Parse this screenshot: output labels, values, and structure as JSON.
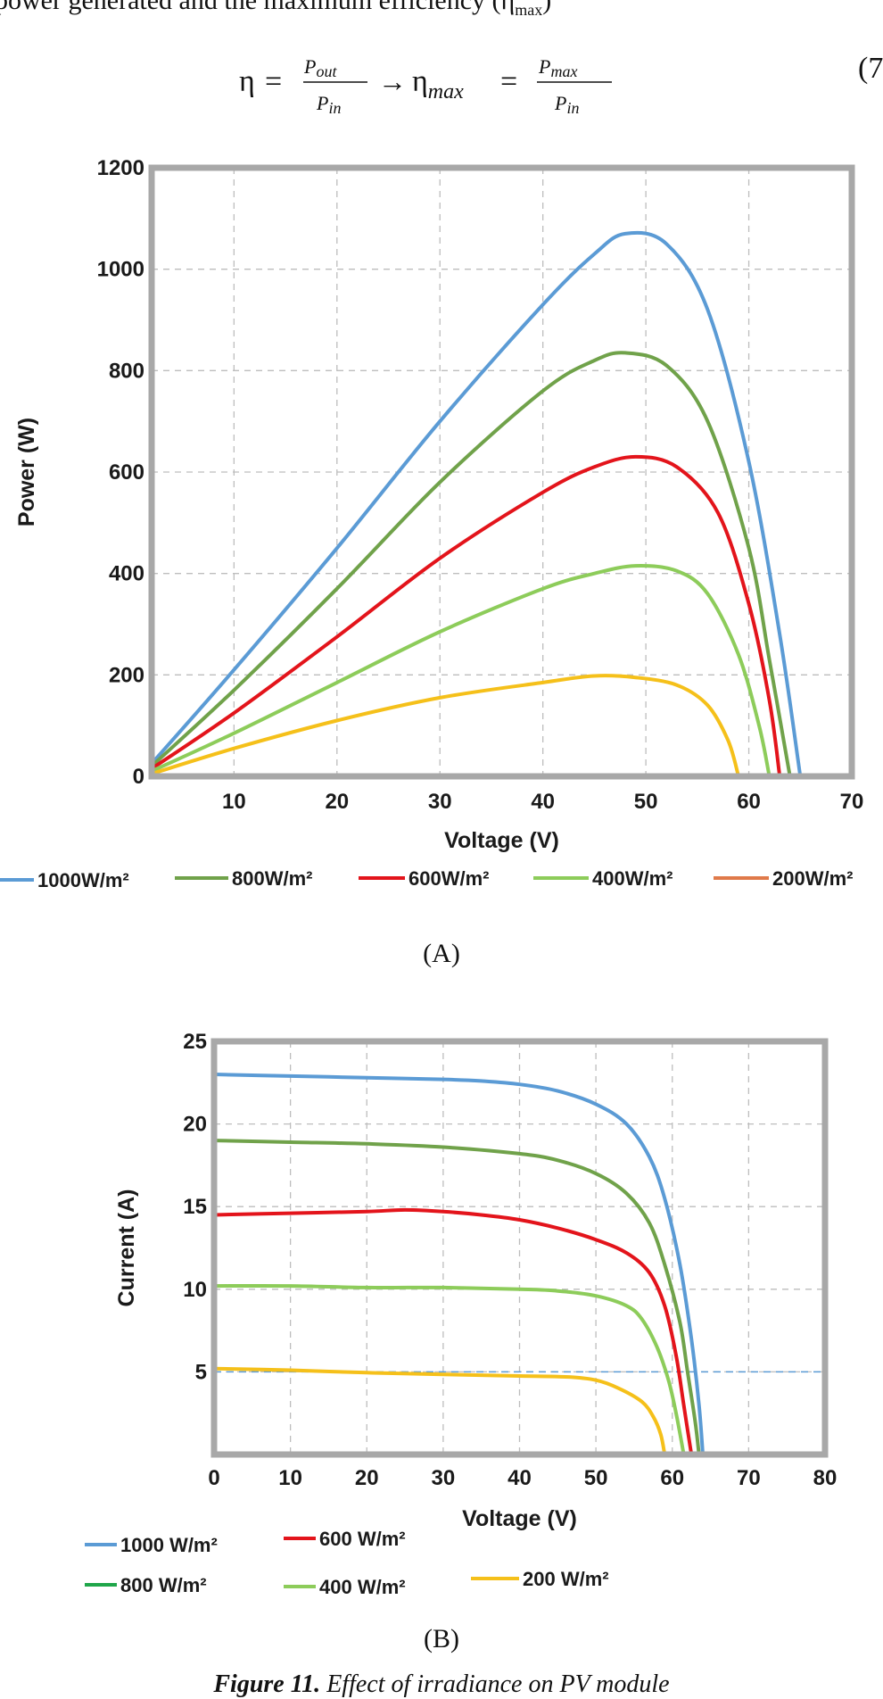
{
  "document": {
    "top_line": "power generated and the maximum efficiency (η",
    "top_line_sub": "max",
    "top_line_end": ")",
    "equation": {
      "eta": "η",
      "eq": "=",
      "p_out": "P",
      "p_out_sub": "out",
      "p_in": "P",
      "p_in_sub": "in",
      "arrow": "→",
      "eta_max_sub": "max",
      "p_max": "P",
      "p_max_sub": "max"
    },
    "equation_number": "(7",
    "panel_a_label": "(A)",
    "panel_b_label": "(B)",
    "caption_bold": "Figure 11.",
    "caption_text": " Effect of irradiance on PV module"
  },
  "chart_data": [
    {
      "id": "A",
      "type": "line",
      "xlabel": "Voltage (V)",
      "ylabel": "Power (W)",
      "xlim": [
        2,
        70
      ],
      "ylim": [
        0,
        1200
      ],
      "xticks": [
        10,
        20,
        30,
        40,
        50,
        60,
        70
      ],
      "yticks": [
        0,
        200,
        400,
        600,
        800,
        1000,
        1200
      ],
      "grid": true,
      "legend_position": "bottom",
      "legend": [
        {
          "label": "1000W/m²",
          "color": "#5b9bd5"
        },
        {
          "label": "800W/m²",
          "color": "#70a24a"
        },
        {
          "label": "600W/m²",
          "color": "#e3141b"
        },
        {
          "label": "400W/m²",
          "color": "#8dcc5a"
        },
        {
          "label": "200W/m²",
          "color": "#e07a4a"
        }
      ],
      "series": [
        {
          "color": "#5b9bd5",
          "x": [
            2,
            10,
            20,
            30,
            40,
            45,
            48,
            52,
            56,
            60,
            63,
            65
          ],
          "y": [
            25,
            210,
            450,
            700,
            930,
            1030,
            1070,
            1050,
            920,
            620,
            280,
            0
          ]
        },
        {
          "color": "#70a24a",
          "x": [
            2,
            10,
            20,
            30,
            40,
            45,
            48,
            52,
            56,
            60,
            62,
            64
          ],
          "y": [
            20,
            170,
            370,
            580,
            760,
            820,
            835,
            810,
            700,
            450,
            230,
            0
          ]
        },
        {
          "color": "#e3141b",
          "x": [
            2,
            10,
            20,
            30,
            40,
            45,
            49,
            53,
            57,
            60,
            62,
            63
          ],
          "y": [
            15,
            125,
            275,
            430,
            560,
            610,
            630,
            610,
            520,
            340,
            150,
            0
          ]
        },
        {
          "color": "#8dcc5a",
          "x": [
            2,
            10,
            20,
            30,
            40,
            45,
            49,
            53,
            56,
            59,
            61,
            62
          ],
          "y": [
            10,
            85,
            185,
            285,
            370,
            400,
            415,
            405,
            360,
            240,
            100,
            0
          ]
        },
        {
          "color": "#f5c01a",
          "x": [
            2,
            10,
            20,
            30,
            40,
            45,
            49,
            53,
            56,
            58,
            59
          ],
          "y": [
            5,
            55,
            110,
            155,
            185,
            198,
            195,
            180,
            140,
            70,
            0
          ]
        }
      ]
    },
    {
      "id": "B",
      "type": "line",
      "xlabel": "Voltage (V)",
      "ylabel": "Current (A)",
      "xlim": [
        0,
        80
      ],
      "ylim": [
        0,
        25
      ],
      "xticks": [
        0,
        10,
        20,
        30,
        40,
        50,
        60,
        70,
        80
      ],
      "yticks": [
        5,
        10,
        15,
        20,
        25
      ],
      "grid": true,
      "reference_line_y": 5,
      "legend_position": "bottom-left",
      "legend": [
        {
          "label": "1000 W/m²",
          "color": "#5b9bd5"
        },
        {
          "label": "600 W/m²",
          "color": "#e3141b"
        },
        {
          "label": "800 W/m²",
          "color": "#1fa64a"
        },
        {
          "label": "400 W/m²",
          "color": "#8dcc5a"
        },
        {
          "label": "200 W/m²",
          "color": "#f5c01a"
        }
      ],
      "series": [
        {
          "color": "#5b9bd5",
          "x": [
            0,
            10,
            20,
            30,
            35,
            40,
            45,
            50,
            54,
            57,
            59,
            61,
            62.5,
            63.5,
            64
          ],
          "y": [
            23,
            22.9,
            22.8,
            22.7,
            22.6,
            22.4,
            22,
            21.2,
            20,
            18,
            15.5,
            11.5,
            7,
            3,
            0
          ]
        },
        {
          "color": "#70a24a",
          "x": [
            0,
            10,
            20,
            30,
            40,
            45,
            50,
            54,
            57,
            59,
            61,
            62,
            63,
            63.5
          ],
          "y": [
            19,
            18.9,
            18.8,
            18.6,
            18.2,
            17.8,
            17,
            15.8,
            14,
            11.5,
            8,
            5,
            2,
            0
          ]
        },
        {
          "color": "#e3141b",
          "x": [
            0,
            10,
            20,
            25,
            30,
            35,
            40,
            45,
            50,
            54,
            57,
            59,
            60.5,
            61.5,
            62.5
          ],
          "y": [
            14.5,
            14.6,
            14.7,
            14.8,
            14.7,
            14.5,
            14.2,
            13.7,
            13,
            12.2,
            11,
            9,
            6,
            3,
            0
          ]
        },
        {
          "color": "#8dcc5a",
          "x": [
            0,
            10,
            20,
            30,
            40,
            45,
            50,
            54,
            56,
            58,
            59.5,
            60.5,
            61.5
          ],
          "y": [
            10.2,
            10.2,
            10.1,
            10.1,
            10,
            9.9,
            9.6,
            9,
            8.2,
            6.5,
            4.5,
            2.5,
            0
          ]
        },
        {
          "color": "#f5c01a",
          "x": [
            0,
            10,
            20,
            30,
            40,
            46,
            50,
            53,
            56,
            57.5,
            58.5,
            59
          ],
          "y": [
            5.2,
            5.1,
            4.95,
            4.85,
            4.75,
            4.7,
            4.5,
            4,
            3.2,
            2.3,
            1.2,
            0
          ]
        }
      ]
    }
  ]
}
